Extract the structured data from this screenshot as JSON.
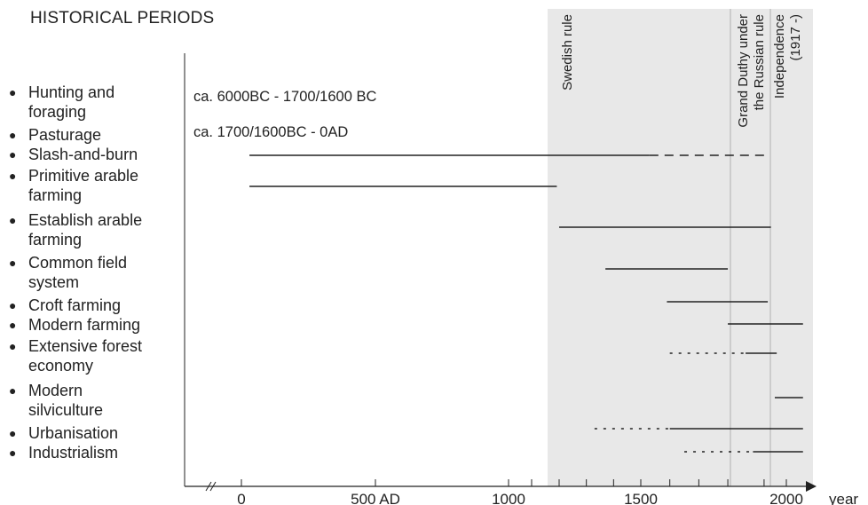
{
  "title": "HISTORICAL PERIODS",
  "subtitles": [
    "ca. 6000BC - 1700/1600 BC",
    "ca. 1700/1600BC - 0AD"
  ],
  "colors": {
    "text": "#222222",
    "shade": "#e8e8e8",
    "line": "#222222",
    "divider": "#b0b0b0"
  },
  "chart_data": {
    "type": "timeline",
    "categories": [
      "Hunting and foraging",
      "Pasturage",
      "Slash-and-burn",
      "Primitive arable farming",
      "Establish arable farming",
      "Common field system",
      "Croft farming",
      "Modern farming",
      "Extensive forest economy",
      "Modern silviculture",
      "Urbanisation",
      "Industrialism"
    ],
    "xlabel": "year",
    "xlim": [
      -120,
      2080
    ],
    "axis_break": true,
    "ticks_major": [
      {
        "value": 0,
        "label": "0"
      },
      {
        "value": 500,
        "label": "500 AD"
      },
      {
        "value": 1000,
        "label": "1000"
      },
      {
        "value": 1500,
        "label": "1500"
      },
      {
        "value": 2000,
        "label": "2000"
      }
    ],
    "ticks_minor": [
      1100,
      1200,
      1300,
      1400,
      1600,
      1700,
      1800,
      1900
    ],
    "segments": [
      {
        "category": "Slash-and-burn",
        "from": 30,
        "to": 1530,
        "style": "solid"
      },
      {
        "category": "Slash-and-burn",
        "from": 1530,
        "to": 1900,
        "style": "dashed"
      },
      {
        "category": "Primitive arable farming",
        "from": 30,
        "to": 1190,
        "style": "solid"
      },
      {
        "category": "Establish arable farming",
        "from": 1200,
        "to": 1920,
        "style": "solid"
      },
      {
        "category": "Common field system",
        "from": 1370,
        "to": 1800,
        "style": "solid"
      },
      {
        "category": "Croft farming",
        "from": 1590,
        "to": 1910,
        "style": "solid"
      },
      {
        "category": "Modern farming",
        "from": 1800,
        "to": 2050,
        "style": "solid"
      },
      {
        "category": "Extensive forest economy",
        "from": 1600,
        "to": 1850,
        "style": "dotted"
      },
      {
        "category": "Extensive forest economy",
        "from": 1850,
        "to": 1950,
        "style": "solid"
      },
      {
        "category": "Modern silviculture",
        "from": 1940,
        "to": 2050,
        "style": "solid"
      },
      {
        "category": "Urbanisation",
        "from": 1330,
        "to": 1600,
        "style": "dotted"
      },
      {
        "category": "Urbanisation",
        "from": 1600,
        "to": 2050,
        "style": "solid"
      },
      {
        "category": "Industrialism",
        "from": 1650,
        "to": 1870,
        "style": "dotted"
      },
      {
        "category": "Industrialism",
        "from": 1870,
        "to": 2050,
        "style": "solid"
      }
    ],
    "periods": [
      {
        "label": "Swedish rule",
        "from": 1150,
        "to": 1809
      },
      {
        "label": "Grand Duthy under the Russian rule",
        "from": 1809,
        "to": 1917
      },
      {
        "label": "Independence (1917 -)",
        "from": 1917,
        "to": 2080
      }
    ]
  }
}
